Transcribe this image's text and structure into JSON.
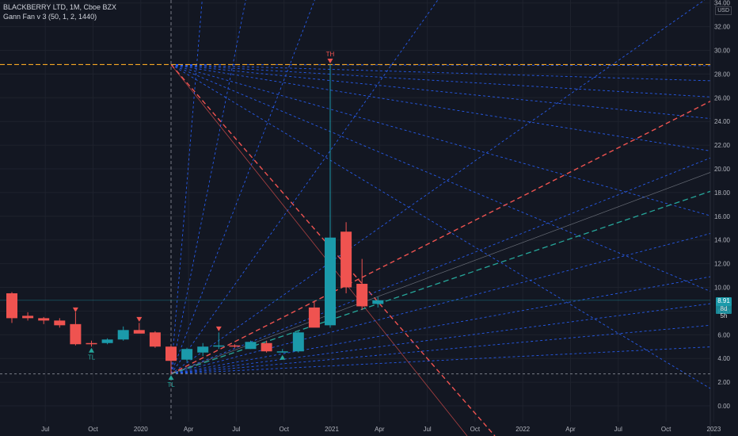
{
  "header": {
    "symbol": "BLACKBERRY LTD, 1M, Cboe BZX",
    "indicator": "Gann Fan v 3 (50, 1, 2, 1440)",
    "currency": "USD"
  },
  "badges": {
    "price": "8.91",
    "countdown": "8d 5h"
  },
  "colors": {
    "background": "#131722",
    "bull": "#26a69a",
    "bull_fill": "#1b9aaa",
    "bear": "#ef5350",
    "fan": "#2962ff",
    "high_line": "#f5a623",
    "low_line": "#787b86",
    "text": "#b2b5be"
  },
  "chart_data": {
    "type": "candlestick",
    "y_axis": {
      "ticks": [
        "0.00",
        "2.00",
        "4.00",
        "6.00",
        "8.00",
        "10.00",
        "12.00",
        "14.00",
        "16.00",
        "18.00",
        "20.00",
        "22.00",
        "24.00",
        "26.00",
        "28.00",
        "30.00",
        "32.00",
        "34.00"
      ],
      "range": [
        -1.2,
        34.3
      ]
    },
    "x_axis": {
      "ticks": [
        "Jul",
        "Oct",
        "2020",
        "Apr",
        "Jul",
        "Oct",
        "2021",
        "Apr",
        "Jul",
        "Oct",
        "2022",
        "Apr",
        "Jul",
        "Oct",
        "2023"
      ]
    },
    "candles": [
      {
        "m": "2019-05",
        "o": 9.5,
        "h": 9.6,
        "l": 7.0,
        "c": 7.4
      },
      {
        "m": "2019-06",
        "o": 7.6,
        "h": 7.9,
        "l": 7.2,
        "c": 7.4
      },
      {
        "m": "2019-07",
        "o": 7.4,
        "h": 7.5,
        "l": 6.9,
        "c": 7.2
      },
      {
        "m": "2019-08",
        "o": 7.2,
        "h": 7.4,
        "l": 6.6,
        "c": 6.8
      },
      {
        "m": "2019-09",
        "o": 6.9,
        "h": 7.9,
        "l": 5.1,
        "c": 5.2
      },
      {
        "m": "2019-10",
        "o": 5.3,
        "h": 5.5,
        "l": 5.0,
        "c": 5.2
      },
      {
        "m": "2019-11",
        "o": 5.3,
        "h": 5.7,
        "l": 5.2,
        "c": 5.6
      },
      {
        "m": "2019-12",
        "o": 5.6,
        "h": 6.7,
        "l": 5.5,
        "c": 6.4
      },
      {
        "m": "2020-01",
        "o": 6.4,
        "h": 7.0,
        "l": 6.2,
        "c": 6.1
      },
      {
        "m": "2020-02",
        "o": 6.2,
        "h": 6.3,
        "l": 4.9,
        "c": 5.0
      },
      {
        "m": "2020-03",
        "o": 5.0,
        "h": 5.1,
        "l": 2.7,
        "c": 3.8
      },
      {
        "m": "2020-04",
        "o": 3.9,
        "h": 4.9,
        "l": 3.7,
        "c": 4.8
      },
      {
        "m": "2020-05",
        "o": 4.5,
        "h": 5.3,
        "l": 4.2,
        "c": 5.0
      },
      {
        "m": "2020-06",
        "o": 5.0,
        "h": 6.2,
        "l": 4.8,
        "c": 5.1
      },
      {
        "m": "2020-07",
        "o": 5.1,
        "h": 5.2,
        "l": 4.9,
        "c": 5.0
      },
      {
        "m": "2020-08",
        "o": 4.8,
        "h": 5.5,
        "l": 4.8,
        "c": 5.4
      },
      {
        "m": "2020-09",
        "o": 5.3,
        "h": 5.5,
        "l": 4.5,
        "c": 4.6
      },
      {
        "m": "2020-10",
        "o": 4.6,
        "h": 4.8,
        "l": 4.5,
        "c": 4.6
      },
      {
        "m": "2020-11",
        "o": 4.6,
        "h": 6.3,
        "l": 4.5,
        "c": 6.2
      },
      {
        "m": "2020-12",
        "o": 8.3,
        "h": 8.8,
        "l": 6.7,
        "c": 6.6
      },
      {
        "m": "2021-01",
        "o": 6.8,
        "h": 28.8,
        "l": 6.6,
        "c": 14.2
      },
      {
        "m": "2021-02",
        "o": 14.7,
        "h": 15.5,
        "l": 9.5,
        "c": 10.0
      },
      {
        "m": "2021-03",
        "o": 10.3,
        "h": 12.4,
        "l": 8.1,
        "c": 8.4
      },
      {
        "m": "2021-04",
        "o": 8.6,
        "h": 9.2,
        "l": 8.3,
        "c": 8.9
      }
    ],
    "markers": [
      {
        "m": "2019-09",
        "kind": "down",
        "price": 8.1,
        "label": ""
      },
      {
        "m": "2019-10",
        "kind": "up",
        "price": 4.7,
        "label": "TL"
      },
      {
        "m": "2020-01",
        "kind": "down",
        "price": 7.3,
        "label": ""
      },
      {
        "m": "2020-03",
        "kind": "up",
        "price": 2.4,
        "label": "TL"
      },
      {
        "m": "2020-06",
        "kind": "down",
        "price": 6.5,
        "label": ""
      },
      {
        "m": "2020-10",
        "kind": "up",
        "price": 4.1,
        "label": ""
      },
      {
        "m": "2021-01",
        "kind": "down",
        "price": 29.1,
        "label": "TH"
      }
    ],
    "levels": [
      {
        "name": "high",
        "price": 28.8
      },
      {
        "name": "low",
        "price": 2.7
      },
      {
        "name": "current",
        "price": 8.91
      }
    ]
  }
}
